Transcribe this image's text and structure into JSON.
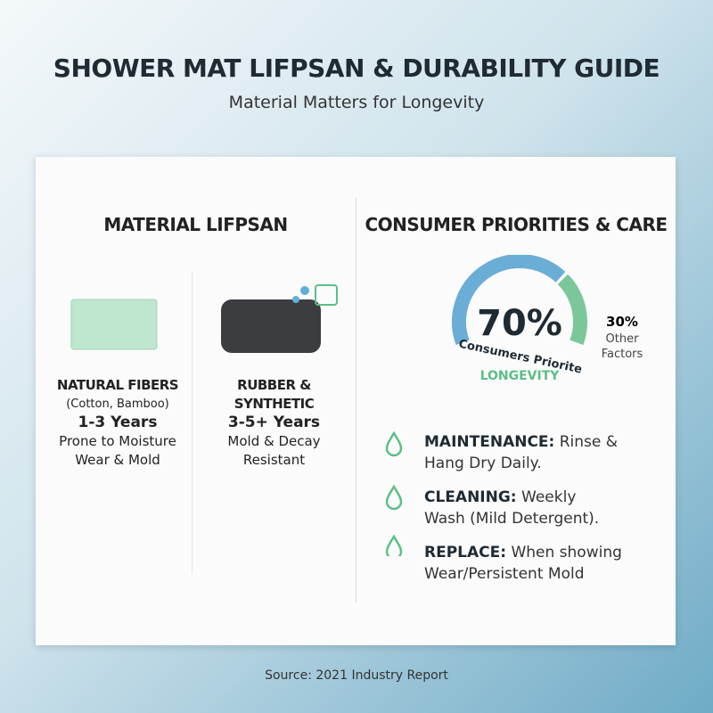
{
  "header": {
    "title": "SHOWER MAT LIFPSAN & DURABILITY GUIDE",
    "subtitle": "Material Matters for Longevity"
  },
  "lifespan": {
    "title": "MATERIAL LIFPSAN",
    "materials": [
      {
        "name": [
          "NATURAL FIBERS"
        ],
        "examples": "(Cotton, Bamboo)",
        "years": "1-3 Years",
        "note": [
          "Prone to Moisture",
          "Wear & Mold"
        ]
      },
      {
        "name": [
          "RUBBER &",
          "SYNTHETIC"
        ],
        "years": "3-5+ Years",
        "note": [
          "Mold & Decay",
          "Resistant"
        ]
      }
    ]
  },
  "priorities": {
    "title": "CONSUMER PRIORITIES & CARE",
    "gauge": {
      "value": 70,
      "label": "70%",
      "caption": "Consumers Priorite",
      "emphasis": "LONGEVITY",
      "other_value": 30,
      "other_label": "30%",
      "other_caption": [
        "Other",
        "Factors"
      ]
    },
    "care": [
      {
        "label": "MAINTENANCE:",
        "text": [
          "Rinse &",
          "Hang Dry Daily."
        ]
      },
      {
        "label": "CLEANING:",
        "text": [
          "Weekly",
          "Wash (Mild Detergent)."
        ]
      },
      {
        "label": "REPLACE:",
        "text": [
          "When showing",
          "Wear/Persistent Mold"
        ]
      }
    ]
  },
  "source": "Source: 2021 Industry Report"
}
